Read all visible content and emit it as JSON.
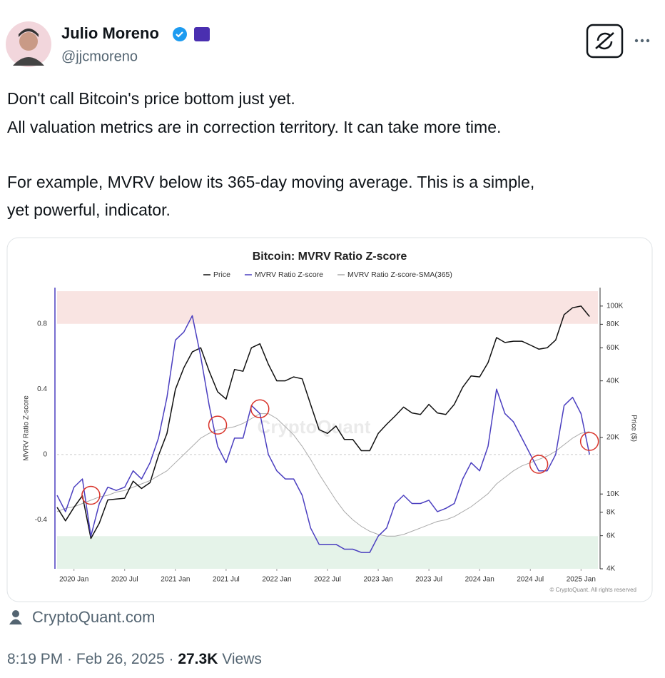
{
  "author": {
    "name": "Julio Moreno",
    "handle": "@jjcmoreno"
  },
  "text_lines": [
    "Don't call Bitcoin's price bottom just yet.",
    "All valuation metrics are in correction territory. It can take more time.",
    "For example, MVRV below its 365-day moving average. This is a simple,",
    "yet powerful, indicator."
  ],
  "source_link": "CryptoQuant.com",
  "timestamp": "8:19 PM · Feb 26, 2025",
  "meta_separator": "·",
  "views": "27.3K",
  "views_label": "Views",
  "chart_data": {
    "type": "line",
    "title": "Bitcoin: MVRV Ratio Z-score",
    "y_label": "MVRV Ratio Z-score",
    "y2_label": "Price ($)",
    "watermark": "CryptoQuant",
    "copyright": "© CryptoQuant. All rights reserved",
    "x": [
      "2019-11",
      "2019-12",
      "2020-01",
      "2020-02",
      "2020-03",
      "2020-04",
      "2020-05",
      "2020-06",
      "2020-07",
      "2020-08",
      "2020-09",
      "2020-10",
      "2020-11",
      "2020-12",
      "2021-01",
      "2021-02",
      "2021-03",
      "2021-04",
      "2021-05",
      "2021-06",
      "2021-07",
      "2021-08",
      "2021-09",
      "2021-10",
      "2021-11",
      "2021-12",
      "2022-01",
      "2022-02",
      "2022-03",
      "2022-04",
      "2022-05",
      "2022-06",
      "2022-07",
      "2022-08",
      "2022-09",
      "2022-10",
      "2022-11",
      "2022-12",
      "2023-01",
      "2023-02",
      "2023-03",
      "2023-04",
      "2023-05",
      "2023-06",
      "2023-07",
      "2023-08",
      "2023-09",
      "2023-10",
      "2023-11",
      "2023-12",
      "2024-01",
      "2024-02",
      "2024-03",
      "2024-04",
      "2024-05",
      "2024-06",
      "2024-07",
      "2024-08",
      "2024-09",
      "2024-10",
      "2024-11",
      "2024-12",
      "2025-01",
      "2025-02"
    ],
    "series": [
      {
        "name": "Price",
        "color": "#111111",
        "axis": "y2",
        "values": [
          8500,
          7200,
          8500,
          9800,
          5800,
          7000,
          9300,
          9400,
          9500,
          11700,
          10700,
          11500,
          16000,
          21000,
          36000,
          47000,
          57000,
          60000,
          45000,
          35000,
          32000,
          46000,
          45000,
          60000,
          63000,
          49000,
          40000,
          40000,
          42000,
          41000,
          30000,
          22000,
          21000,
          23000,
          19500,
          19500,
          17000,
          17000,
          21000,
          23500,
          26000,
          29000,
          27000,
          26500,
          30000,
          27000,
          26500,
          30000,
          37000,
          42500,
          42000,
          50000,
          68000,
          64000,
          65000,
          65000,
          62000,
          59000,
          60000,
          66000,
          90000,
          98000,
          100000,
          88000
        ]
      },
      {
        "name": "MVRV Ratio Z-score",
        "color": "#4b3fc0",
        "values": [
          -0.25,
          -0.35,
          -0.2,
          -0.15,
          -0.5,
          -0.3,
          -0.2,
          -0.22,
          -0.2,
          -0.1,
          -0.15,
          -0.05,
          0.1,
          0.35,
          0.7,
          0.75,
          0.85,
          0.6,
          0.3,
          0.05,
          -0.05,
          0.1,
          0.1,
          0.3,
          0.25,
          0.0,
          -0.1,
          -0.15,
          -0.15,
          -0.25,
          -0.45,
          -0.55,
          -0.55,
          -0.55,
          -0.58,
          -0.58,
          -0.6,
          -0.6,
          -0.5,
          -0.45,
          -0.3,
          -0.25,
          -0.3,
          -0.3,
          -0.28,
          -0.35,
          -0.33,
          -0.3,
          -0.15,
          -0.05,
          -0.1,
          0.05,
          0.4,
          0.25,
          0.2,
          0.1,
          0.0,
          -0.1,
          -0.1,
          0.0,
          0.3,
          0.35,
          0.25,
          0.0
        ]
      },
      {
        "name": "MVRV Ratio Z-score-SMA(365)",
        "color": "#aaaaaa",
        "values": [
          -0.35,
          -0.33,
          -0.32,
          -0.3,
          -0.28,
          -0.26,
          -0.25,
          -0.23,
          -0.22,
          -0.2,
          -0.18,
          -0.16,
          -0.13,
          -0.1,
          -0.05,
          0.0,
          0.05,
          0.1,
          0.13,
          0.15,
          0.16,
          0.17,
          0.19,
          0.22,
          0.25,
          0.25,
          0.22,
          0.17,
          0.12,
          0.05,
          -0.03,
          -0.12,
          -0.2,
          -0.28,
          -0.35,
          -0.4,
          -0.44,
          -0.47,
          -0.49,
          -0.5,
          -0.5,
          -0.49,
          -0.47,
          -0.45,
          -0.43,
          -0.41,
          -0.4,
          -0.38,
          -0.35,
          -0.32,
          -0.28,
          -0.24,
          -0.18,
          -0.14,
          -0.1,
          -0.07,
          -0.05,
          -0.03,
          -0.01,
          0.02,
          0.06,
          0.1,
          0.13,
          0.14
        ]
      }
    ],
    "xlim": [
      "2019-11",
      "2025-03"
    ],
    "xticks": [
      {
        "value": "2020-01",
        "label": "2020 Jan"
      },
      {
        "value": "2020-07",
        "label": "2020 Jul"
      },
      {
        "value": "2021-01",
        "label": "2021 Jan"
      },
      {
        "value": "2021-07",
        "label": "2021 Jul"
      },
      {
        "value": "2022-01",
        "label": "2022 Jan"
      },
      {
        "value": "2022-07",
        "label": "2022 Jul"
      },
      {
        "value": "2023-01",
        "label": "2023 Jan"
      },
      {
        "value": "2023-07",
        "label": "2023 Jul"
      },
      {
        "value": "2024-01",
        "label": "2024 Jan"
      },
      {
        "value": "2024-07",
        "label": "2024 Jul"
      },
      {
        "value": "2025-01",
        "label": "2025 Jan"
      }
    ],
    "ylim": [
      -0.7,
      1.0
    ],
    "yticks": [
      -0.4,
      0,
      0.4,
      0.8
    ],
    "y2lim": [
      4000,
      120000
    ],
    "y2log": true,
    "y2ticks": [
      {
        "value": 4000,
        "label": "4K"
      },
      {
        "value": 6000,
        "label": "6K"
      },
      {
        "value": 8000,
        "label": "8K"
      },
      {
        "value": 10000,
        "label": "10K"
      },
      {
        "value": 20000,
        "label": "20K"
      },
      {
        "value": 40000,
        "label": "40K"
      },
      {
        "value": 60000,
        "label": "60K"
      },
      {
        "value": 80000,
        "label": "80K"
      },
      {
        "value": 100000,
        "label": "100K"
      }
    ],
    "bands": [
      {
        "from": 0.8,
        "to": 1.0,
        "color": "#f9e4e2"
      },
      {
        "from": -0.7,
        "to": -0.5,
        "color": "#e5f3e9"
      }
    ],
    "highlights": [
      {
        "x": "2020-03",
        "y": -0.25
      },
      {
        "x": "2021-06",
        "y": 0.18
      },
      {
        "x": "2021-11",
        "y": 0.28
      },
      {
        "x": "2024-08",
        "y": -0.06
      },
      {
        "x": "2025-02",
        "y": 0.08
      }
    ],
    "highlight_color": "#d9342b",
    "legend": "top"
  }
}
